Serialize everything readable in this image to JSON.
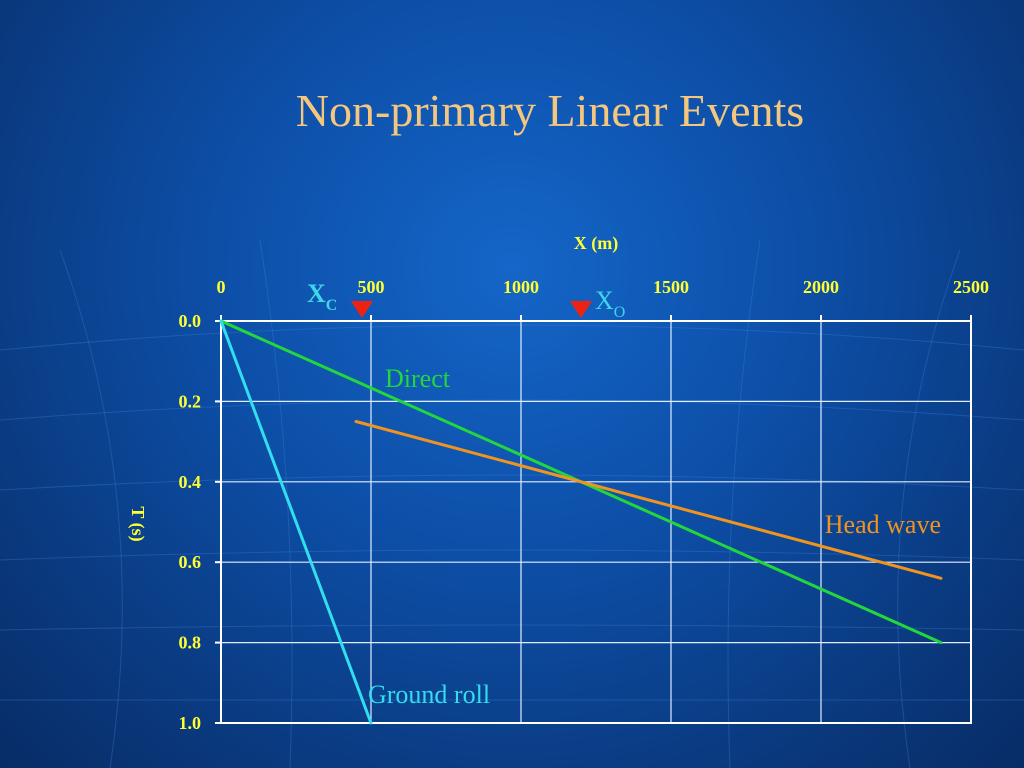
{
  "slide": {
    "title": "Non-primary Linear Events"
  },
  "chart_data": {
    "type": "line",
    "xlabel": "X (m)",
    "ylabel": "T (s)",
    "x_ticks": [
      0,
      500,
      1000,
      1500,
      2000,
      2500
    ],
    "y_ticks": [
      "0.0",
      "0.2",
      "0.4",
      "0.6",
      "0.8",
      "1.0"
    ],
    "xlim": [
      0,
      2500
    ],
    "ylim": [
      0,
      1.0
    ],
    "y_inverted": true,
    "grid": true,
    "series": [
      {
        "name": "Direct",
        "color": "#22d63c",
        "x": [
          0,
          2400
        ],
        "y": [
          0,
          0.8
        ]
      },
      {
        "name": "Head wave",
        "color": "#f0941e",
        "x": [
          450,
          2400
        ],
        "y": [
          0.25,
          0.64
        ]
      },
      {
        "name": "Ground roll",
        "color": "#33ddee",
        "x": [
          0,
          500
        ],
        "y": [
          0,
          1.0
        ]
      }
    ],
    "markers": [
      {
        "label": "X",
        "sub": "C",
        "x": 470,
        "color": "#3fd6e8"
      },
      {
        "label": "X",
        "sub": "O",
        "x": 1200,
        "color": "#3fd6e8"
      }
    ],
    "marker_color": "#ee2211"
  }
}
